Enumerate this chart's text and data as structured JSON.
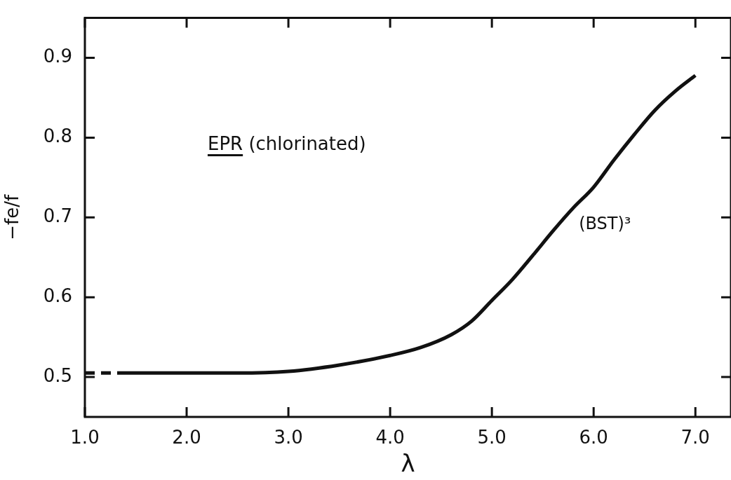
{
  "chart_data": {
    "type": "line",
    "xlabel": "λ",
    "ylabel": "−fe/f",
    "annotations": [
      "EPR (chlorinated)"
    ],
    "xlim": [
      1.0,
      7.35
    ],
    "ylim": [
      0.45,
      0.95
    ],
    "xticks": [
      {
        "value": 1,
        "label": "1.0"
      },
      {
        "value": 2,
        "label": "2.0"
      },
      {
        "value": 3,
        "label": "3.0"
      },
      {
        "value": 4,
        "label": "4.0"
      },
      {
        "value": 5,
        "label": "5.0"
      },
      {
        "value": 6,
        "label": "6.0"
      },
      {
        "value": 7,
        "label": "7.0"
      }
    ],
    "yticks": [
      0.5,
      0.6,
      0.7,
      0.8,
      0.9
    ],
    "grid": false,
    "legend": false,
    "marker": "none",
    "series": [
      {
        "color": "#111111",
        "line_style": "dashed",
        "x": [
          1.0,
          1.4
        ],
        "values": [
          0.505,
          0.505
        ]
      },
      {
        "name": "(BST)³",
        "color": "#111111",
        "line_style": "solid",
        "x": [
          1.4,
          2.0,
          2.5,
          3.0,
          3.5,
          4.0,
          4.3,
          4.6,
          4.8,
          5.0,
          5.2,
          5.4,
          5.6,
          5.8,
          6.0,
          6.2,
          6.4,
          6.6,
          6.8,
          7.0
        ],
        "values": [
          0.505,
          0.505,
          0.505,
          0.507,
          0.515,
          0.527,
          0.537,
          0.553,
          0.57,
          0.596,
          0.622,
          0.652,
          0.683,
          0.712,
          0.738,
          0.772,
          0.804,
          0.834,
          0.858,
          0.878
        ]
      }
    ]
  }
}
